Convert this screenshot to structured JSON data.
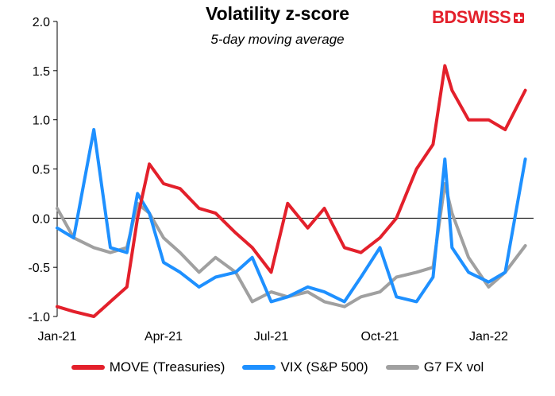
{
  "chart_data": {
    "type": "line",
    "title": "Volatility z-score",
    "subtitle": "5-day moving average",
    "ylim": [
      -1.0,
      2.0
    ],
    "yticks": [
      "2.0",
      "1.5",
      "1.0",
      "0.5",
      "0.0",
      "-0.5",
      "-1.0"
    ],
    "xticks": [
      "Jan-21",
      "Apr-21",
      "Jul-21",
      "Oct-21",
      "Jan-22"
    ],
    "x": [
      "2021-01-01",
      "2021-01-15",
      "2021-02-01",
      "2021-02-15",
      "2021-03-01",
      "2021-03-10",
      "2021-03-20",
      "2021-04-01",
      "2021-04-15",
      "2021-05-01",
      "2021-05-15",
      "2021-06-01",
      "2021-06-15",
      "2021-07-01",
      "2021-07-15",
      "2021-08-01",
      "2021-08-15",
      "2021-09-01",
      "2021-09-15",
      "2021-10-01",
      "2021-10-15",
      "2021-11-01",
      "2021-11-15",
      "2021-11-25",
      "2021-12-01",
      "2021-12-15",
      "2022-01-01",
      "2022-01-15",
      "2022-02-01"
    ],
    "series": [
      {
        "name": "MOVE (Treasuries)",
        "color": "#e3202b",
        "values": [
          -0.9,
          -0.95,
          -1.0,
          -0.85,
          -0.7,
          0.0,
          0.55,
          0.35,
          0.3,
          0.1,
          0.05,
          -0.15,
          -0.3,
          -0.55,
          0.15,
          -0.1,
          0.1,
          -0.3,
          -0.35,
          -0.2,
          0.0,
          0.5,
          0.75,
          1.55,
          1.3,
          1.0,
          1.0,
          0.9,
          1.3
        ]
      },
      {
        "name": "VIX (S&P 500)",
        "color": "#1e90ff",
        "values": [
          -0.1,
          -0.2,
          0.9,
          -0.3,
          -0.35,
          0.25,
          0.05,
          -0.45,
          -0.55,
          -0.7,
          -0.6,
          -0.55,
          -0.4,
          -0.85,
          -0.8,
          -0.7,
          -0.75,
          -0.85,
          -0.6,
          -0.3,
          -0.8,
          -0.85,
          -0.6,
          0.6,
          -0.3,
          -0.55,
          -0.65,
          -0.55,
          0.6
        ]
      },
      {
        "name": "G7 FX vol",
        "color": "#a0a0a0",
        "values": [
          0.1,
          -0.2,
          -0.3,
          -0.35,
          -0.3,
          0.15,
          0.05,
          -0.2,
          -0.35,
          -0.55,
          -0.4,
          -0.55,
          -0.85,
          -0.75,
          -0.8,
          -0.75,
          -0.85,
          -0.9,
          -0.8,
          -0.75,
          -0.6,
          -0.55,
          -0.5,
          0.35,
          0.05,
          -0.4,
          -0.7,
          -0.55,
          -0.28
        ]
      }
    ]
  },
  "logo": {
    "bd": "BD",
    "swiss": "SWISS"
  },
  "legend_items": [
    "MOVE (Treasuries)",
    "VIX (S&P 500)",
    "G7 FX vol"
  ]
}
